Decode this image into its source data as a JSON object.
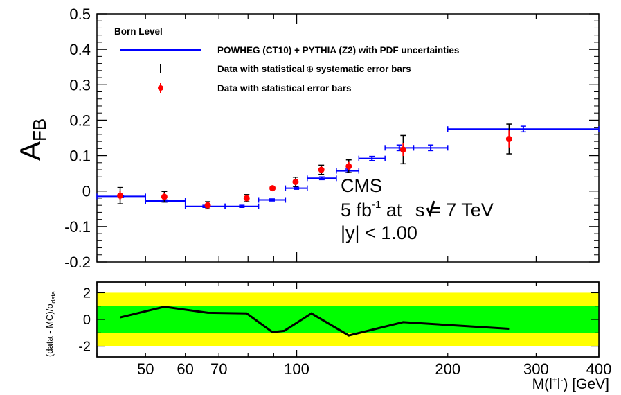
{
  "chart_data": [
    {
      "type": "scatter",
      "panel": "main",
      "ylabel_main": "A",
      "ylabel_sub": "FB",
      "xscale": "log",
      "xlim": [
        40,
        400
      ],
      "ylim": [
        -0.2,
        0.5
      ],
      "yticks": [
        "0.5",
        "0.4",
        "0.3",
        "0.2",
        "0.1",
        "0",
        "-0.1",
        "-0.2"
      ],
      "legend": {
        "header": "Born Level",
        "entries": [
          "POWHEG (CT10) + PYTHIA (Z2) with PDF uncertainties",
          "Data with statistical",
          "systematic error bars",
          "Data with statistical error bars"
        ],
        "oplus": "⊕"
      },
      "annotations": {
        "line1": "CMS",
        "line2_a": "5 fb",
        "line2_sup": "-1",
        "line2_b": " at ",
        "line2_c": "s = 7 TeV",
        "line3": "|y| < 1.00"
      },
      "series": [
        {
          "name": "POWHEG (CT10) + PYTHIA (Z2) with PDF uncertainties",
          "color": "#0000ff",
          "bins": [
            {
              "x0": 40,
              "x1": 50,
              "y": -0.015,
              "err": 0.003
            },
            {
              "x0": 50,
              "x1": 60,
              "y": -0.028,
              "err": 0.003
            },
            {
              "x0": 60,
              "x1": 72,
              "y": -0.043,
              "err": 0.003
            },
            {
              "x0": 72,
              "x1": 84,
              "y": -0.043,
              "err": 0.003
            },
            {
              "x0": 84,
              "x1": 95,
              "y": -0.025,
              "err": 0.003
            },
            {
              "x0": 95,
              "x1": 105,
              "y": 0.008,
              "err": 0.003
            },
            {
              "x0": 105,
              "x1": 120,
              "y": 0.036,
              "err": 0.004
            },
            {
              "x0": 120,
              "x1": 133,
              "y": 0.057,
              "err": 0.005
            },
            {
              "x0": 133,
              "x1": 150,
              "y": 0.092,
              "err": 0.006
            },
            {
              "x0": 150,
              "x1": 171,
              "y": 0.122,
              "err": 0.008
            },
            {
              "x0": 171,
              "x1": 200,
              "y": 0.122,
              "err": 0.008
            },
            {
              "x0": 200,
              "x1": 400,
              "y": 0.175,
              "err": 0.008
            }
          ]
        },
        {
          "name": "Data",
          "color": "#ff0000",
          "points": [
            {
              "x": 44.5,
              "y": -0.013,
              "stat": 0.013,
              "tot": 0.023
            },
            {
              "x": 54.5,
              "y": -0.016,
              "stat": 0.01,
              "tot": 0.015
            },
            {
              "x": 66.5,
              "y": -0.04,
              "stat": 0.008,
              "tot": 0.01
            },
            {
              "x": 79.5,
              "y": -0.02,
              "stat": 0.008,
              "tot": 0.01
            },
            {
              "x": 89.5,
              "y": 0.008,
              "stat": 0.002,
              "tot": 0.003
            },
            {
              "x": 99.5,
              "y": 0.026,
              "stat": 0.008,
              "tot": 0.013
            },
            {
              "x": 112,
              "y": 0.06,
              "stat": 0.009,
              "tot": 0.013
            },
            {
              "x": 127,
              "y": 0.07,
              "stat": 0.012,
              "tot": 0.018
            },
            {
              "x": 163,
              "y": 0.117,
              "stat": 0.018,
              "tot": 0.04
            },
            {
              "x": 265,
              "y": 0.147,
              "stat": 0.024,
              "tot": 0.042
            }
          ]
        }
      ]
    },
    {
      "type": "line",
      "panel": "ratio",
      "ylabel": "(data - MC)/σ",
      "ylabel_sub": "data",
      "xlabel": "M(l",
      "xlabel_sup": "+",
      "xlabel_l2": "l",
      "xlabel_sup2": "-",
      "xlabel_end": ") [GeV]",
      "xlim": [
        40,
        400
      ],
      "ylim": [
        -2.8,
        2.8
      ],
      "yticks": [
        "2",
        "0",
        "-2"
      ],
      "xticks": [
        {
          "v": 50,
          "label": "50"
        },
        {
          "v": 60,
          "label": "60"
        },
        {
          "v": 70,
          "label": "70"
        },
        {
          "v": 100,
          "label": "100"
        },
        {
          "v": 200,
          "label": "200"
        },
        {
          "v": 300,
          "label": "300"
        },
        {
          "v": 400,
          "label": "400"
        }
      ],
      "bands": [
        {
          "name": "±2σ",
          "lo": -2,
          "hi": 2,
          "color": "#ffff00"
        },
        {
          "name": "±1σ",
          "lo": -1,
          "hi": 1,
          "color": "#00ff00"
        }
      ],
      "series": [
        {
          "name": "ratio",
          "color": "#000000",
          "x": [
            44.5,
            54.5,
            66.5,
            79.5,
            89.5,
            94.5,
            107,
            127,
            163,
            265
          ],
          "y": [
            0.15,
            0.95,
            0.5,
            0.45,
            -0.95,
            -0.85,
            0.45,
            -1.2,
            -0.2,
            -0.7
          ]
        }
      ]
    }
  ]
}
